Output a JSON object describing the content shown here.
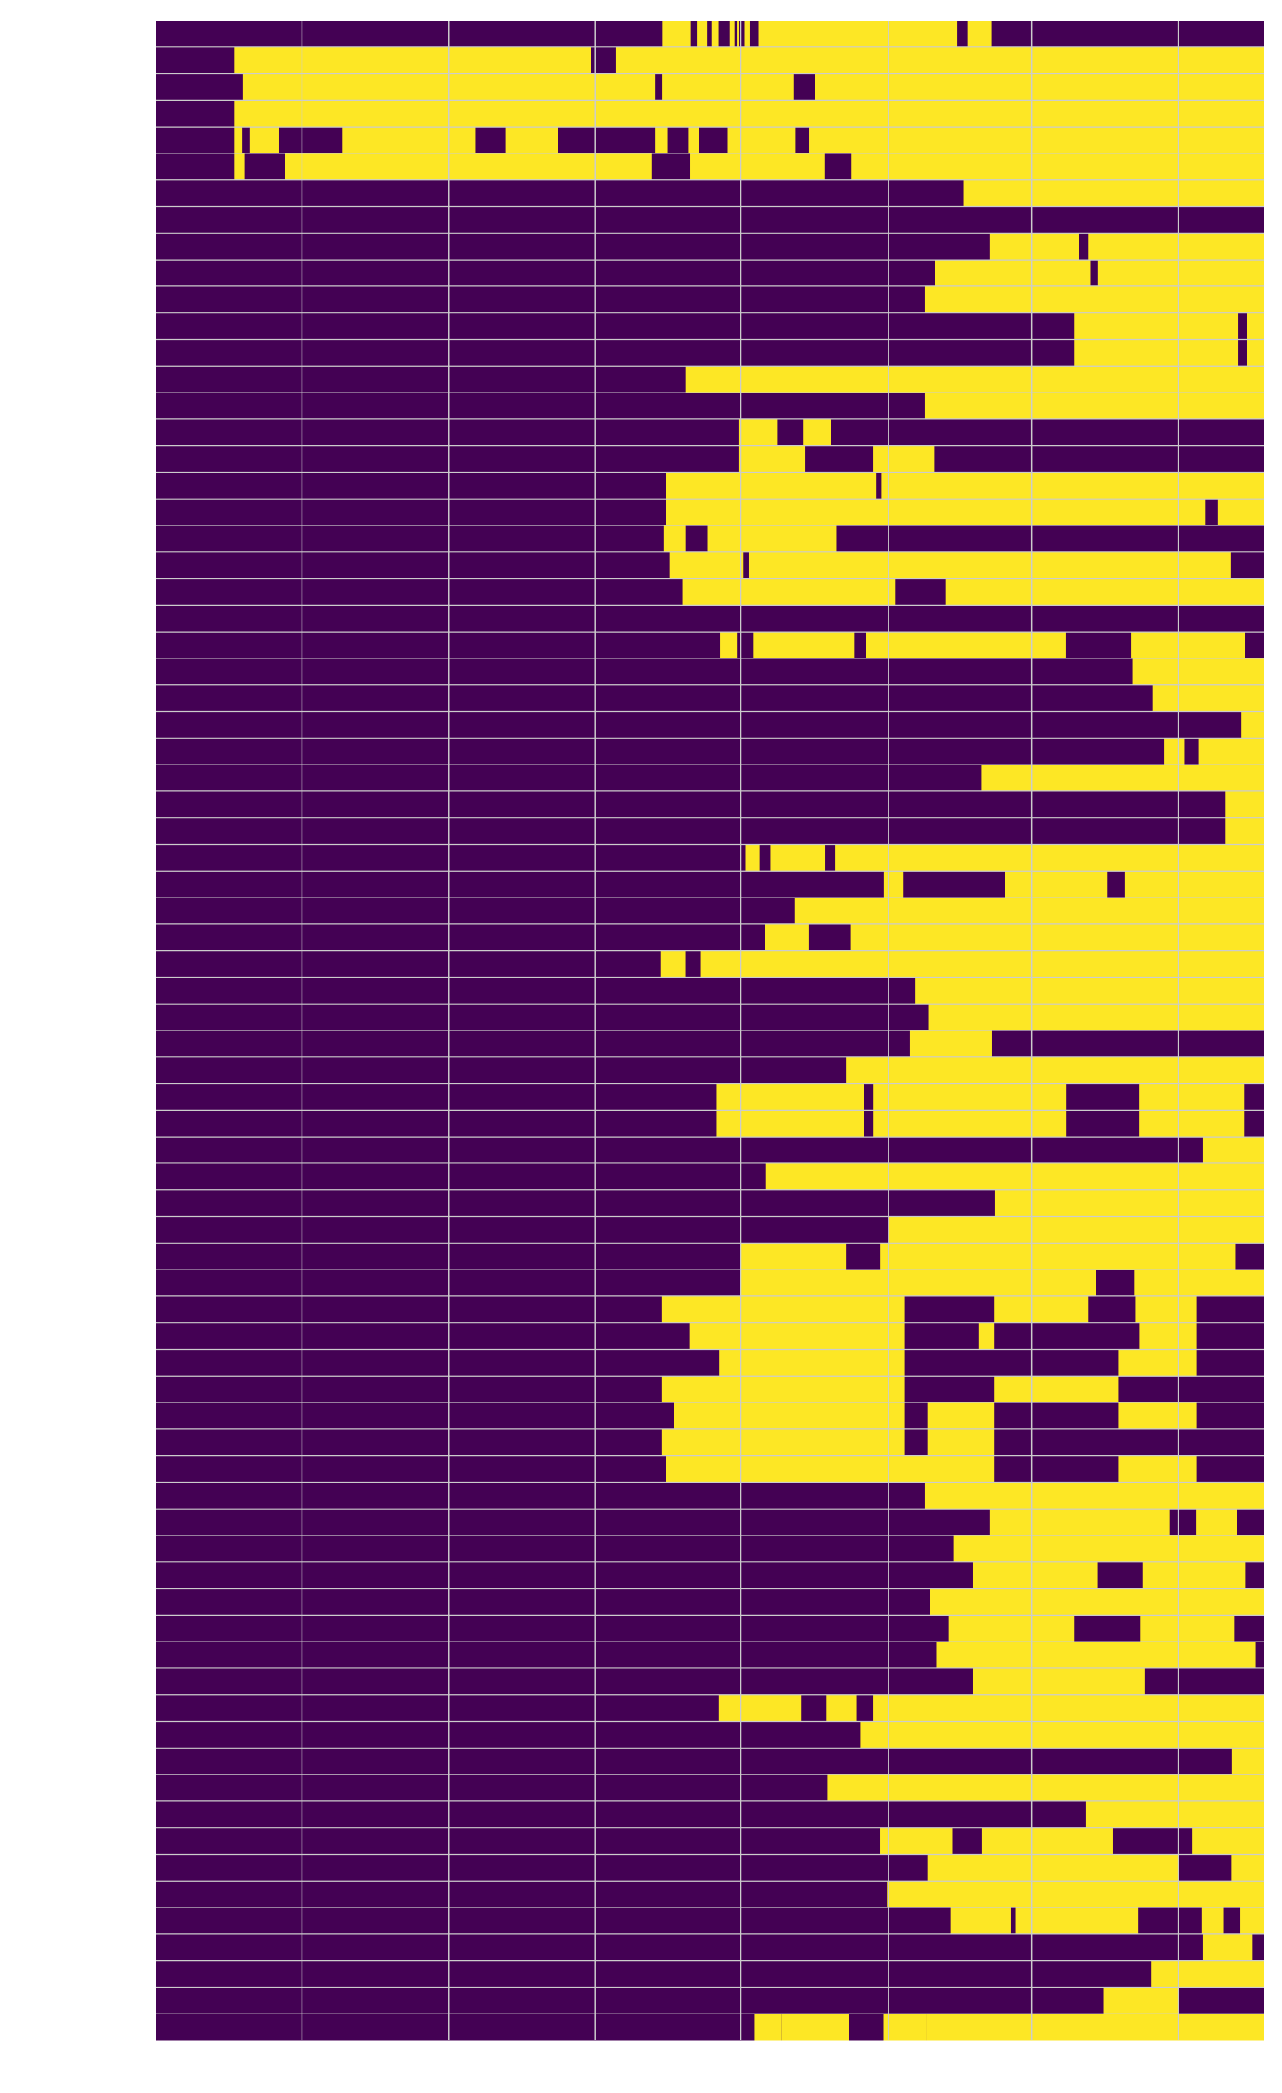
{
  "chart_data": {
    "type": "heatmap",
    "title": "",
    "xlabel": "",
    "ylabel": "",
    "xlim": [
      0,
      1
    ],
    "grid": true,
    "x_gridlines": [
      0.1316,
      0.2639,
      0.3963,
      0.5278,
      0.6609,
      0.7904,
      0.9224
    ],
    "colors": {
      "off": "#440154",
      "on": "#fde725",
      "grid": "#cccccc"
    },
    "rows": [
      [
        [
          0.4568,
          0.482
        ],
        [
          0.488,
          0.4977
        ],
        [
          0.5014,
          0.5077
        ],
        [
          0.5175,
          0.5223
        ],
        [
          0.5242,
          0.5258
        ],
        [
          0.531,
          0.5362
        ],
        [
          0.5439,
          0.7231
        ],
        [
          0.7324,
          0.7541
        ]
      ],
      [
        [
          0.0703,
          0.3928
        ],
        [
          0.4146,
          1
        ]
      ],
      [
        [
          0.078,
          0.4502
        ],
        [
          0.4566,
          0.5755
        ],
        [
          0.5943,
          1
        ]
      ],
      [
        [
          0.0703,
          1
        ]
      ],
      [
        [
          0.0703,
          0.0774
        ],
        [
          0.0844,
          0.1111
        ],
        [
          0.1677,
          0.2878
        ],
        [
          0.3153,
          0.3627
        ],
        [
          0.4502,
          0.4618
        ],
        [
          0.4802,
          0.4898
        ],
        [
          0.5157,
          0.5768
        ],
        [
          0.5894,
          1
        ]
      ],
      [
        [
          0.0703,
          0.0802
        ],
        [
          0.1165,
          0.4475
        ],
        [
          0.4815,
          0.6037
        ],
        [
          0.6274,
          1
        ]
      ],
      [
        [
          0.7283,
          1
        ]
      ],
      [],
      [
        [
          0.7527,
          0.8332
        ],
        [
          0.8416,
          1
        ]
      ],
      [
        [
          0.7029,
          0.8434
        ],
        [
          0.8501,
          1
        ]
      ],
      [
        [
          0.694,
          1
        ]
      ],
      [
        [
          0.8287,
          0.9767
        ],
        [
          0.9847,
          1
        ]
      ],
      [
        [
          0.8287,
          0.9767
        ],
        [
          0.9847,
          1
        ]
      ],
      [
        [
          0.478,
          1
        ]
      ],
      [
        [
          0.694,
          1
        ]
      ],
      [
        [
          0.5257,
          0.5607
        ],
        [
          0.5839,
          0.609
        ]
      ],
      [
        [
          0.5257,
          0.5854
        ],
        [
          0.6474,
          0.7024
        ]
      ],
      [
        [
          0.4605,
          0.6499
        ],
        [
          0.6549,
          1
        ]
      ],
      [
        [
          0.4605,
          0.9471
        ],
        [
          0.958,
          1
        ]
      ],
      [
        [
          0.458,
          0.478
        ],
        [
          0.498,
          0.6139
        ]
      ],
      [
        [
          0.4635,
          0.53
        ],
        [
          0.5346,
          0.9701
        ]
      ],
      [
        [
          0.4755,
          0.6669
        ],
        [
          0.7123,
          1
        ]
      ],
      [],
      [
        [
          0.5089,
          0.5243
        ],
        [
          0.5389,
          0.6299
        ],
        [
          0.6409,
          0.8212
        ],
        [
          0.8801,
          0.9831
        ]
      ],
      [
        [
          0.8813,
          1
        ]
      ],
      [
        [
          0.8991,
          1
        ]
      ],
      [
        [
          0.9792,
          1
        ]
      ],
      [
        [
          0.9099,
          0.9279
        ],
        [
          0.9409,
          1
        ]
      ],
      [
        [
          0.7451,
          1
        ]
      ],
      [
        [
          0.9648,
          1
        ]
      ],
      [
        [
          0.9648,
          1
        ]
      ],
      [
        [
          0.5318,
          0.5448
        ],
        [
          0.5543,
          0.6039
        ],
        [
          0.6128,
          1
        ]
      ],
      [
        [
          0.6569,
          0.6741
        ],
        [
          0.7659,
          0.8585
        ],
        [
          0.8743,
          1
        ]
      ],
      [
        [
          0.5763,
          1
        ]
      ],
      [
        [
          0.5495,
          0.5893
        ],
        [
          0.6269,
          1
        ]
      ],
      [
        [
          0.4555,
          0.4779
        ],
        [
          0.4916,
          1
        ]
      ],
      [
        [
          0.6853,
          1
        ]
      ],
      [
        [
          0.6969,
          1
        ]
      ],
      [
        [
          0.6803,
          0.7544
        ]
      ],
      [
        [
          0.6225,
          1
        ]
      ],
      [
        [
          0.506,
          0.6389
        ],
        [
          0.6475,
          0.8214
        ],
        [
          0.8874,
          0.9817
        ]
      ],
      [
        [
          0.506,
          0.6389
        ],
        [
          0.6475,
          0.8214
        ],
        [
          0.8874,
          0.9817
        ]
      ],
      [
        [
          0.9444,
          1
        ]
      ],
      [
        [
          0.5505,
          1
        ]
      ],
      [
        [
          0.7568,
          1
        ]
      ],
      [
        [
          0.6611,
          1
        ]
      ],
      [
        [
          0.5277,
          0.6225
        ],
        [
          0.6531,
          0.9738
        ]
      ],
      [
        [
          0.5277,
          0.8484
        ],
        [
          0.8827,
          1
        ]
      ],
      [
        [
          0.4564,
          0.6752
        ],
        [
          0.7562,
          0.8416
        ],
        [
          0.8836,
          0.9393
        ]
      ],
      [
        [
          0.4812,
          0.6752
        ],
        [
          0.7422,
          0.7562
        ],
        [
          0.8876,
          0.9393
        ]
      ],
      [
        [
          0.5082,
          0.6752
        ],
        [
          0.8683,
          0.9393
        ]
      ],
      [
        [
          0.4564,
          0.6752
        ],
        [
          0.7562,
          0.8683
        ]
      ],
      [
        [
          0.4672,
          0.6752
        ],
        [
          0.6962,
          0.7562
        ],
        [
          0.8683,
          0.9393
        ]
      ],
      [
        [
          0.4564,
          0.6752
        ],
        [
          0.6962,
          0.7562
        ]
      ],
      [
        [
          0.4605,
          0.7562
        ],
        [
          0.8683,
          0.9393
        ]
      ],
      [
        [
          0.694,
          1
        ]
      ],
      [
        [
          0.7527,
          0.9144
        ],
        [
          0.9389,
          0.9757
        ]
      ],
      [
        [
          0.7195,
          1
        ]
      ],
      [
        [
          0.7375,
          0.8499
        ],
        [
          0.8903,
          0.9834
        ]
      ],
      [
        [
          0.6985,
          1
        ]
      ],
      [
        [
          0.7155,
          0.8287
        ],
        [
          0.8883,
          0.9729
        ]
      ],
      [
        [
          0.7041,
          0.9924
        ]
      ],
      [
        [
          0.7375,
          0.892
        ]
      ],
      [
        [
          0.5079,
          0.5823
        ],
        [
          0.6049,
          0.6325
        ],
        [
          0.6474,
          1
        ]
      ],
      [
        [
          0.6356,
          1
        ]
      ],
      [
        [
          0.9709,
          1
        ]
      ],
      [
        [
          0.6058,
          1
        ]
      ],
      [
        [
          0.8389,
          1
        ]
      ],
      [
        [
          0.653,
          0.7186
        ],
        [
          0.7455,
          0.8639
        ],
        [
          0.9349,
          1
        ]
      ],
      [
        [
          0.6962,
          0.9221
        ],
        [
          0.9705,
          1
        ]
      ],
      [
        [
          0.6596,
          1
        ]
      ],
      [
        [
          0.7171,
          0.7713
        ],
        [
          0.7758,
          0.8866
        ],
        [
          0.9435,
          0.9634
        ],
        [
          0.9783,
          1
        ]
      ],
      [
        [
          0.9444,
          0.989
        ]
      ],
      [
        [
          0.8979,
          1
        ]
      ],
      [
        [
          0.8547,
          0.9222
        ]
      ],
      [
        [
          0.5398,
          0.5638
        ],
        [
          0.5639,
          0.6256
        ],
        [
          0.6566,
          0.6953
        ],
        [
          0.6953,
          1
        ]
      ]
    ]
  }
}
